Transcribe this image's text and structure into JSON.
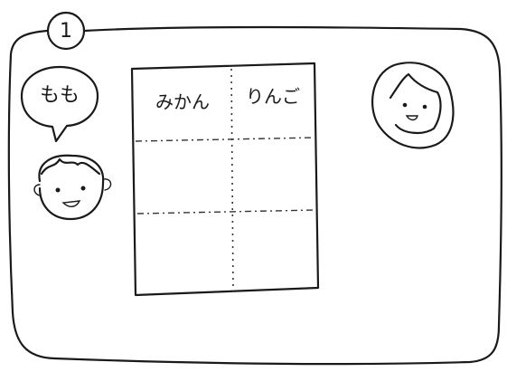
{
  "label": "1",
  "speech": "もも",
  "table": {
    "headers": [
      "みかん",
      "りんご"
    ]
  }
}
